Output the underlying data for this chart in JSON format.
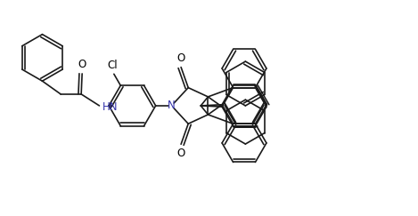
{
  "bg_color": "#ffffff",
  "line_color": "#1a1a1a",
  "label_color": "#000000",
  "n_color": "#3333aa",
  "o_color": "#000000",
  "cl_color": "#000000",
  "figsize": [
    4.69,
    2.43
  ],
  "dpi": 100,
  "xlim": [
    0,
    9.5
  ],
  "ylim": [
    0,
    4.9
  ]
}
